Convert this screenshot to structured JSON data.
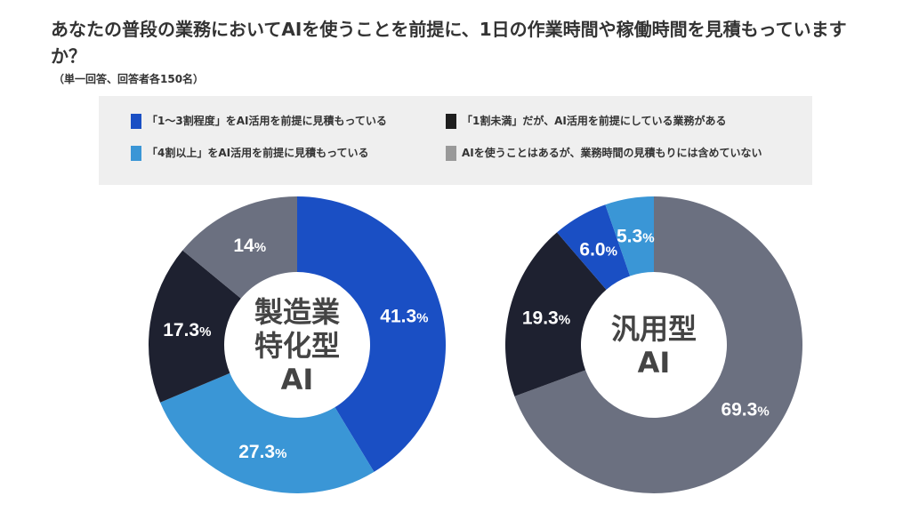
{
  "title": "あなたの普段の業務においてAIを使うことを前提に、1日の作業時間や稼働時間を見積もっていますか？",
  "subtitle": "（単一回答、回答者各150名）",
  "colors": {
    "c1": "#1a4fc4",
    "c2": "#3a96d6",
    "c3": "#1e2130",
    "c4": "#6b7080"
  },
  "chart_data": [
    {
      "type": "pie",
      "donut": true,
      "center_label": [
        "製造業",
        "特化型",
        "AI"
      ],
      "categories": [
        "「1〜3割程度」をAI活用を前提に見積もっている",
        "「4割以上」をAI活用を前提に見積もっている",
        "「1割未満」だが、AI活用を前提にしている業務がある",
        "AIを使うことはあるが、業務時間の見積もりには含めていない"
      ],
      "values": [
        41.3,
        27.3,
        17.3,
        14
      ],
      "labels": [
        "41.3",
        "27.3",
        "17.3",
        "14"
      ],
      "unit": "%",
      "order": [
        0,
        1,
        2,
        3
      ]
    },
    {
      "type": "pie",
      "donut": true,
      "center_label": [
        "汎用型",
        "AI"
      ],
      "categories": [
        "「1〜3割程度」をAI活用を前提に見積もっている",
        "「4割以上」をAI活用を前提に見積もっている",
        "「1割未満」だが、AI活用を前提にしている業務がある",
        "AIを使うことはあるが、業務時間の見積もりには含めていない"
      ],
      "values": [
        6.0,
        5.3,
        19.3,
        69.3
      ],
      "labels": [
        "6.0",
        "5.3",
        "19.3",
        "69.3"
      ],
      "unit": "%",
      "order": [
        3,
        2,
        0,
        1
      ]
    }
  ],
  "legend": [
    {
      "label": "「1〜3割程度」をAI活用を前提に見積もっている",
      "color": "#1a4fc4"
    },
    {
      "label": "「1割未満」だが、AI活用を前提にしている業務がある",
      "color": "#1e1e1e"
    },
    {
      "label": "「4割以上」をAI活用を前提に見積もっている",
      "color": "#3a96d6"
    },
    {
      "label": "AIを使うことはあるが、業務時間の見積もりには含めていない",
      "color": "#999999"
    }
  ]
}
